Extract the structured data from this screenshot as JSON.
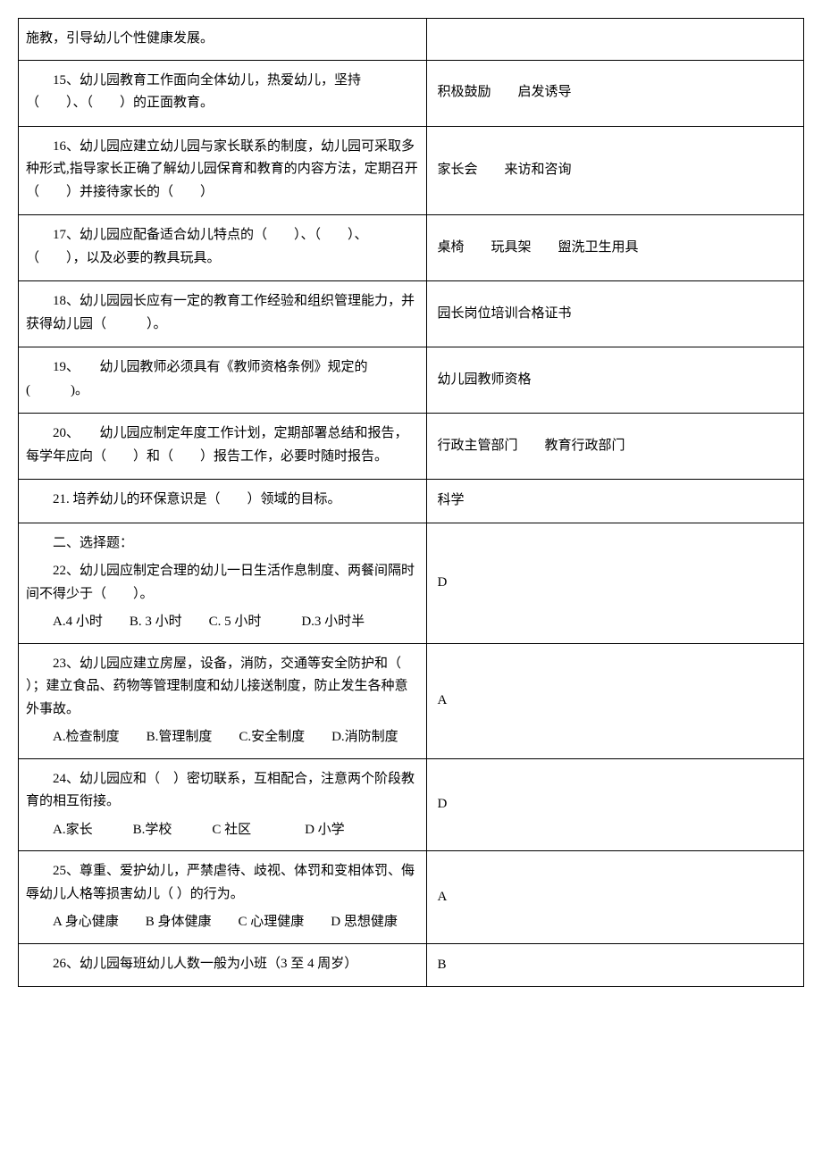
{
  "rows": [
    {
      "question": "施教，引导幼儿个性健康发展。",
      "answer": ""
    },
    {
      "question": "15、幼儿园教育工作面向全体幼儿，热爱幼儿，坚持（　　）、（　　）的正面教育。",
      "answer": "积极鼓励　　启发诱导"
    },
    {
      "question": "16、幼儿园应建立幼儿园与家长联系的制度，幼儿园可采取多种形式,指导家长正确了解幼儿园保育和教育的内容方法，定期召开（　　）并接待家长的（　　）",
      "answer": "家长会　　来访和咨询"
    },
    {
      "question": "17、幼儿园应配备适合幼儿特点的（　　）、（　　）、（　　），以及必要的教具玩具。",
      "answer": "桌椅　　玩具架　　盥洗卫生用具"
    },
    {
      "question": "18、幼儿园园长应有一定的教育工作经验和组织管理能力，并获得幼儿园（　　　）。",
      "answer": "园长岗位培训合格证书"
    },
    {
      "question": "19、　　幼儿园教师必须具有《教师资格条例》规定的(　　　)。",
      "answer": "幼儿园教师资格"
    },
    {
      "question": "20、　　幼儿园应制定年度工作计划，定期部署总结和报告，每学年应向（　　）和（　　）报告工作，必要时随时报告。",
      "answer": "行政主管部门　　教育行政部门"
    },
    {
      "question": "21. 培养幼儿的环保意识是（　　）领域的目标。",
      "answer": "科学"
    },
    {
      "section": "二、选择题：",
      "question": "22、幼儿园应制定合理的幼儿一日生活作息制度、两餐间隔时间不得少于（　　）。",
      "options": "A.4 小时　　B. 3 小时　　C. 5 小时　　　D.3 小时半",
      "answer": "D"
    },
    {
      "question": "23、幼儿园应建立房屋，设备，消防，交通等安全防护和（ ）；建立食品、药物等管理制度和幼儿接送制度，防止发生各种意外事故。",
      "options": "A.检查制度　　B.管理制度　　C.安全制度　　D.消防制度",
      "answer": "A"
    },
    {
      "question": "24、幼儿园应和（　）密切联系，互相配合，注意两个阶段教育的相互衔接。",
      "options": "A.家长　　　B.学校　　　C 社区　　　　D 小学",
      "answer": "D"
    },
    {
      "question": "25、尊重、爱护幼儿，严禁虐待、歧视、体罚和变相体罚、侮辱幼儿人格等损害幼儿（ ）的行为。",
      "options": "A 身心健康　　B 身体健康　　C 心理健康　　D 思想健康",
      "answer": "A"
    },
    {
      "question": "26、幼儿园每班幼儿人数一般为小班（3 至 4 周岁）",
      "answer": "B"
    }
  ]
}
